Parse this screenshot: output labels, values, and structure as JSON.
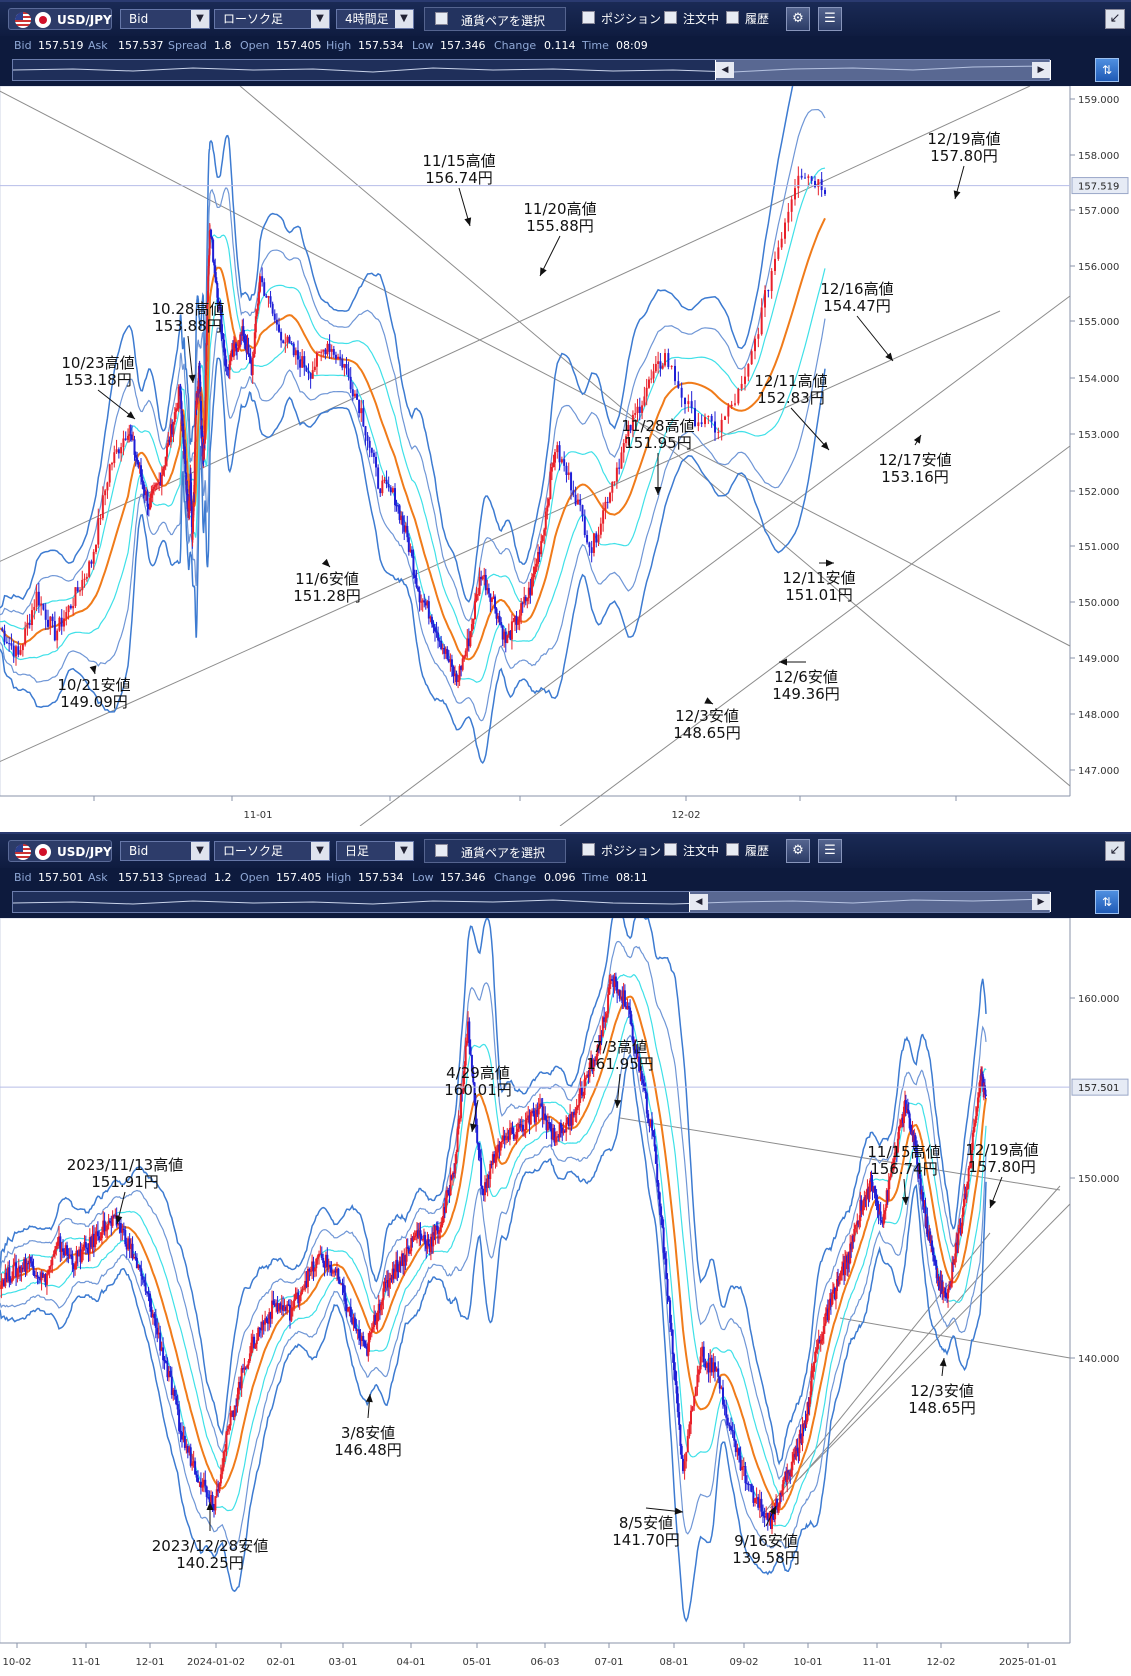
{
  "panels": [
    {
      "symbol": "USD/JPY",
      "price_type": "Bid",
      "chart_kind": "ローソク足",
      "timeframe": "4時間足",
      "select_pair_label": "通貨ペアを選択",
      "position_label": "ポジション",
      "orders_label": "注文中",
      "history_label": "履歴",
      "quote": {
        "Bid": "157.519",
        "Ask": "157.537",
        "Spread": "1.8",
        "Open": "157.405",
        "High": "157.534",
        "Low": "157.346",
        "Change": "0.114",
        "Time": "08:09"
      },
      "current_price_label": "157.519"
    },
    {
      "symbol": "USD/JPY",
      "price_type": "Bid",
      "chart_kind": "ローソク足",
      "timeframe": "日足",
      "select_pair_label": "通貨ペアを選択",
      "position_label": "ポジション",
      "orders_label": "注文中",
      "history_label": "履歴",
      "quote": {
        "Bid": "157.501",
        "Ask": "157.513",
        "Spread": "1.2",
        "Open": "157.405",
        "High": "157.534",
        "Low": "157.346",
        "Change": "0.096",
        "Time": "08:11"
      },
      "current_price_label": "157.501"
    }
  ],
  "quote_keys": [
    "Bid",
    "Ask",
    "Spread",
    "Open",
    "High",
    "Low",
    "Change",
    "Time"
  ],
  "colors": {
    "up": "#e8202a",
    "down": "#1f1fd6",
    "ma": "#f07b1a",
    "band1": "#3fe0e8",
    "band2": "#6f96d6",
    "band3": "#3d7bd1"
  },
  "chart_data": [
    {
      "type": "candlestick",
      "timeframe": "4時間足",
      "ylim": [
        146.6,
        159.3
      ],
      "yticks": [
        "159.000",
        "158.000",
        "157.000",
        "156.000",
        "155.000",
        "154.000",
        "153.000",
        "152.000",
        "151.000",
        "150.000",
        "149.000",
        "148.000",
        "147.000"
      ],
      "xticks": [
        "11-01",
        "12-02"
      ],
      "current_price": 157.519,
      "path": [
        149.6,
        149.1,
        150.2,
        149.5,
        150.1,
        150.8,
        152.5,
        153.18,
        152.5,
        151.8,
        152.2,
        153.0,
        153.88,
        153.4,
        153.0,
        152.6,
        152.0,
        151.7,
        152.3,
        151.28,
        152.0,
        153.5,
        153.7,
        154.3,
        153.3,
        152.7,
        153.0,
        154.6,
        155.9,
        156.74,
        155.5,
        154.2,
        154.6,
        154.9,
        154.2,
        155.88,
        155.0,
        154.5,
        154.2,
        154.7,
        154.3,
        153.5,
        152.2,
        151.95,
        151.2,
        150.2,
        149.8,
        149.2,
        148.65,
        149.4,
        150.6,
        150.1,
        149.36,
        149.8,
        150.3,
        151.3,
        152.83,
        152.1,
        151.01,
        152.1,
        153.1,
        153.9,
        154.47,
        153.4,
        153.16,
        154.0,
        156.0,
        157.8,
        157.5
      ],
      "annotations": [
        {
          "lines": [
            "10/23高値",
            "153.18円"
          ],
          "kind": "high"
        },
        {
          "lines": [
            "10.28高値",
            "153.88円"
          ],
          "kind": "high"
        },
        {
          "lines": [
            "11/15高値",
            "156.74円"
          ],
          "kind": "high"
        },
        {
          "lines": [
            "11/20高値",
            "155.88円"
          ],
          "kind": "high"
        },
        {
          "lines": [
            "11/28高値",
            "151.95円"
          ],
          "kind": "high"
        },
        {
          "lines": [
            "12/11高値",
            "152.83円"
          ],
          "kind": "high"
        },
        {
          "lines": [
            "12/16高値",
            "154.47円"
          ],
          "kind": "high"
        },
        {
          "lines": [
            "12/19高値",
            "157.80円"
          ],
          "kind": "high"
        },
        {
          "lines": [
            "10/21安値",
            "149.09円"
          ],
          "kind": "low"
        },
        {
          "lines": [
            "11/6安値",
            "151.28円"
          ],
          "kind": "low"
        },
        {
          "lines": [
            "12/3安値",
            "148.65円"
          ],
          "kind": "low"
        },
        {
          "lines": [
            "12/6安値",
            "149.36円"
          ],
          "kind": "low"
        },
        {
          "lines": [
            "12/11安値",
            "151.01円"
          ],
          "kind": "low"
        },
        {
          "lines": [
            "12/17安値",
            "153.16円"
          ],
          "kind": "low"
        }
      ]
    },
    {
      "type": "candlestick",
      "timeframe": "日足",
      "ylim": [
        134.5,
        164.5
      ],
      "yticks": [
        "160.000",
        "150.000",
        "140.000"
      ],
      "xticks": [
        "10-02",
        "11-01",
        "12-01",
        "2024-01-02",
        "02-01",
        "03-01",
        "04-01",
        "05-01",
        "06-03",
        "07-01",
        "08-01",
        "09-02",
        "10-01",
        "11-01",
        "12-02",
        "2025-01-01"
      ],
      "current_price": 157.501,
      "path": [
        149.5,
        149.9,
        150.3,
        149.5,
        151.0,
        150.3,
        150.9,
        151.7,
        151.91,
        150.5,
        148.5,
        146.0,
        143.0,
        141.5,
        140.25,
        143.5,
        146.0,
        147.5,
        148.5,
        148.2,
        149.5,
        150.5,
        149.8,
        148.0,
        146.48,
        148.5,
        149.8,
        150.5,
        151.5,
        151.0,
        152.0,
        154.5,
        160.01,
        153.0,
        155.0,
        155.5,
        156.0,
        156.5,
        155.5,
        156.0,
        157.5,
        159.0,
        161.95,
        161.0,
        158.0,
        155.0,
        148.5,
        141.7,
        146.5,
        145.5,
        142.5,
        140.5,
        139.58,
        141.0,
        142.0,
        143.5,
        146.5,
        148.0,
        149.5,
        150.5,
        152.5,
        153.5,
        152.0,
        154.5,
        156.74,
        155.0,
        152.0,
        150.0,
        148.65,
        151.0,
        154.0,
        157.8,
        157.5
      ],
      "annotations": [
        {
          "lines": [
            "2023/11/13高値",
            "151.91円"
          ],
          "kind": "high"
        },
        {
          "lines": [
            "4/29高値",
            "160.01円"
          ],
          "kind": "high"
        },
        {
          "lines": [
            "7/3高値",
            "161.95円"
          ],
          "kind": "high"
        },
        {
          "lines": [
            "11/15高値",
            "156.74円"
          ],
          "kind": "high"
        },
        {
          "lines": [
            "12/19高値",
            "157.80円"
          ],
          "kind": "high"
        },
        {
          "lines": [
            "2023/12/28安値",
            "140.25円"
          ],
          "kind": "low"
        },
        {
          "lines": [
            "3/8安値",
            "146.48円"
          ],
          "kind": "low"
        },
        {
          "lines": [
            "8/5安値",
            "141.70円"
          ],
          "kind": "low"
        },
        {
          "lines": [
            "9/16安値",
            "139.58円"
          ],
          "kind": "low"
        },
        {
          "lines": [
            "12/3安値",
            "148.65円"
          ],
          "kind": "low"
        }
      ]
    }
  ]
}
